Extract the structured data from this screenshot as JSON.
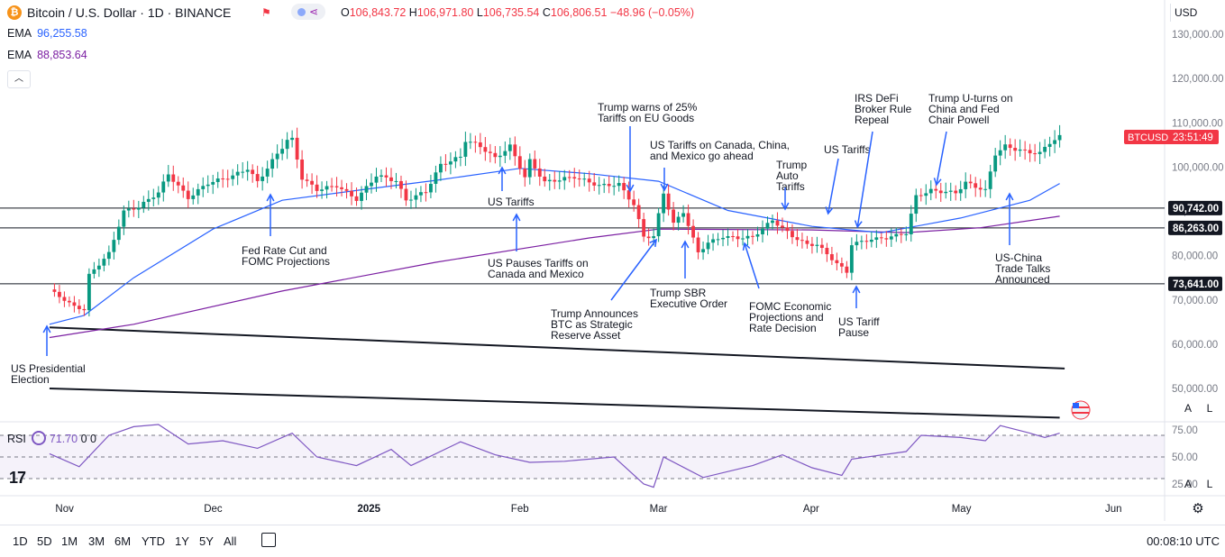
{
  "header": {
    "symbol": "Bitcoin / U.S. Dollar · 1D · BINANCE",
    "open_label": "O",
    "open": "106,843.72",
    "high_label": "H",
    "high": "106,971.80",
    "low_label": "L",
    "low": "106,735.54",
    "close_label": "C",
    "close": "106,806.51",
    "change": "−48.96 (−0.05%)",
    "logo_glyph": "₿",
    "currency": "USD"
  },
  "ema": [
    {
      "label": "EMA",
      "value": "96,255.58",
      "color": "#2962ff"
    },
    {
      "label": "EMA",
      "value": "88,853.64",
      "color": "#7b1fa2"
    }
  ],
  "rsi": {
    "label": "RSI",
    "value": "71.70",
    "extra1": "0",
    "extra2": "0",
    "color": "#7e57c2"
  },
  "price_axis": {
    "ticks": [
      "130,000.00",
      "120,000.00",
      "110,000.00",
      "100,000.00",
      "90,000.00",
      "80,000.00",
      "70,000.00",
      "60,000.00",
      "50,000.00"
    ],
    "tick_values": [
      130000,
      120000,
      110000,
      100000,
      90000,
      80000,
      70000,
      60000,
      50000
    ],
    "last_label": "BTCUSD",
    "last_timer": "23:51:49",
    "last_color": "#f23645"
  },
  "rsi_axis": {
    "ticks": [
      "75.00",
      "50.00",
      "25.00"
    ],
    "tick_values": [
      75,
      50,
      25
    ]
  },
  "time_axis": {
    "labels": [
      "Nov",
      "Dec",
      "2025",
      "Feb",
      "Mar",
      "Apr",
      "May",
      "Jun"
    ]
  },
  "axis_buttons": {
    "auto": "A",
    "log": "L"
  },
  "bottom_bar": {
    "ranges": [
      "1D",
      "5D",
      "1M",
      "3M",
      "6M",
      "YTD",
      "1Y",
      "5Y",
      "All"
    ],
    "clock": "00:08:10 UTC"
  },
  "chart_data": {
    "type": "candlestick",
    "title": "Bitcoin / U.S. Dollar · 1D · BINANCE",
    "y_unit": "USD",
    "ylim": [
      43000,
      138000
    ],
    "x_range": [
      "2024-10-29",
      "2025-06-05"
    ],
    "colors": {
      "up": "#089981",
      "down": "#f23645",
      "ema_fast": "#2962ff",
      "ema_slow": "#7b1fa2",
      "rsi": "#7e57c2"
    },
    "close_path": [
      [
        "2024-10-29",
        72300
      ],
      [
        "2024-11-03",
        68500
      ],
      [
        "2024-11-05",
        67800
      ],
      [
        "2024-11-06",
        75600
      ],
      [
        "2024-11-10",
        80500
      ],
      [
        "2024-11-13",
        90000
      ],
      [
        "2024-11-16",
        91000
      ],
      [
        "2024-11-20",
        94300
      ],
      [
        "2024-11-22",
        98400
      ],
      [
        "2024-11-26",
        93000
      ],
      [
        "2024-11-30",
        96400
      ],
      [
        "2024-12-05",
        98000
      ],
      [
        "2024-12-08",
        99700
      ],
      [
        "2024-12-10",
        96600
      ],
      [
        "2024-12-13",
        101400
      ],
      [
        "2024-12-16",
        106100
      ],
      [
        "2024-12-17",
        106200
      ],
      [
        "2024-12-19",
        97500
      ],
      [
        "2024-12-22",
        94900
      ],
      [
        "2024-12-26",
        95800
      ],
      [
        "2024-12-30",
        92700
      ],
      [
        "2025-01-03",
        98100
      ],
      [
        "2025-01-07",
        96900
      ],
      [
        "2025-01-09",
        92500
      ],
      [
        "2025-01-13",
        94500
      ],
      [
        "2025-01-16",
        100500
      ],
      [
        "2025-01-20",
        102300
      ],
      [
        "2025-01-21",
        106100
      ],
      [
        "2025-01-24",
        104700
      ],
      [
        "2025-01-27",
        102000
      ],
      [
        "2025-01-30",
        104700
      ],
      [
        "2025-02-02",
        97700
      ],
      [
        "2025-02-03",
        101400
      ],
      [
        "2025-02-06",
        96600
      ],
      [
        "2025-02-12",
        97800
      ],
      [
        "2025-02-17",
        95800
      ],
      [
        "2025-02-21",
        96100
      ],
      [
        "2025-02-24",
        91500
      ],
      [
        "2025-02-26",
        84300
      ],
      [
        "2025-02-28",
        84300
      ],
      [
        "2025-03-02",
        94200
      ],
      [
        "2025-03-04",
        87200
      ],
      [
        "2025-03-06",
        89900
      ],
      [
        "2025-03-09",
        80700
      ],
      [
        "2025-03-11",
        82900
      ],
      [
        "2025-03-14",
        84300
      ],
      [
        "2025-03-17",
        84000
      ],
      [
        "2025-03-20",
        84200
      ],
      [
        "2025-03-24",
        88000
      ],
      [
        "2025-03-28",
        84400
      ],
      [
        "2025-03-31",
        82500
      ],
      [
        "2025-04-02",
        82500
      ],
      [
        "2025-04-06",
        78200
      ],
      [
        "2025-04-08",
        76300
      ],
      [
        "2025-04-09",
        82600
      ],
      [
        "2025-04-13",
        83700
      ],
      [
        "2025-04-16",
        84000
      ],
      [
        "2025-04-20",
        85100
      ],
      [
        "2025-04-22",
        93400
      ],
      [
        "2025-04-25",
        94700
      ],
      [
        "2025-04-30",
        94200
      ],
      [
        "2025-05-02",
        96500
      ],
      [
        "2025-05-06",
        94700
      ],
      [
        "2025-05-08",
        103000
      ],
      [
        "2025-05-10",
        104700
      ],
      [
        "2025-05-14",
        103500
      ],
      [
        "2025-05-17",
        103100
      ],
      [
        "2025-05-19",
        105600
      ],
      [
        "2025-05-21",
        106800
      ]
    ],
    "ema_fast_path": [
      [
        "2024-10-29",
        64500
      ],
      [
        "2024-11-05",
        66500
      ],
      [
        "2024-11-15",
        75000
      ],
      [
        "2024-12-01",
        86000
      ],
      [
        "2024-12-15",
        92500
      ],
      [
        "2025-01-01",
        95000
      ],
      [
        "2025-01-15",
        97000
      ],
      [
        "2025-02-01",
        99700
      ],
      [
        "2025-02-15",
        98500
      ],
      [
        "2025-03-01",
        96800
      ],
      [
        "2025-03-15",
        90200
      ],
      [
        "2025-04-01",
        86600
      ],
      [
        "2025-04-15",
        85200
      ],
      [
        "2025-05-01",
        88500
      ],
      [
        "2025-05-15",
        92500
      ],
      [
        "2025-05-21",
        96300
      ]
    ],
    "ema_slow_path": [
      [
        "2024-10-29",
        61500
      ],
      [
        "2024-11-15",
        64500
      ],
      [
        "2024-12-15",
        72000
      ],
      [
        "2025-01-15",
        78500
      ],
      [
        "2025-02-15",
        84000
      ],
      [
        "2025-03-01",
        86000
      ],
      [
        "2025-04-01",
        85800
      ],
      [
        "2025-04-20",
        85200
      ],
      [
        "2025-05-05",
        86300
      ],
      [
        "2025-05-21",
        88900
      ]
    ],
    "horizontal_levels": [
      {
        "label": "90,742.00",
        "value": 90742
      },
      {
        "label": "86,263.00",
        "value": 86263
      },
      {
        "label": "73,641.00",
        "value": 73641
      }
    ],
    "trend_lines": [
      {
        "from": [
          "2024-10-29",
          63800
        ],
        "to": [
          "2025-05-22",
          54500
        ]
      },
      {
        "from": [
          "2024-10-29",
          50000
        ],
        "to": [
          "2025-05-21",
          43400
        ]
      }
    ],
    "rsi_path": [
      [
        "2024-10-29",
        53
      ],
      [
        "2024-11-04",
        41
      ],
      [
        "2024-11-10",
        70
      ],
      [
        "2024-11-15",
        78
      ],
      [
        "2024-11-20",
        80
      ],
      [
        "2024-11-26",
        62
      ],
      [
        "2024-12-03",
        65
      ],
      [
        "2024-12-10",
        58
      ],
      [
        "2024-12-17",
        72
      ],
      [
        "2024-12-22",
        50
      ],
      [
        "2024-12-30",
        42
      ],
      [
        "2025-01-06",
        57
      ],
      [
        "2025-01-10",
        42
      ],
      [
        "2025-01-20",
        64
      ],
      [
        "2025-01-27",
        52
      ],
      [
        "2025-02-03",
        45
      ],
      [
        "2025-02-10",
        46
      ],
      [
        "2025-02-20",
        50
      ],
      [
        "2025-02-26",
        25
      ],
      [
        "2025-02-28",
        22
      ],
      [
        "2025-03-02",
        50
      ],
      [
        "2025-03-10",
        31
      ],
      [
        "2025-03-20",
        42
      ],
      [
        "2025-03-26",
        52
      ],
      [
        "2025-04-01",
        40
      ],
      [
        "2025-04-07",
        33
      ],
      [
        "2025-04-09",
        48
      ],
      [
        "2025-04-20",
        55
      ],
      [
        "2025-04-23",
        70
      ],
      [
        "2025-05-01",
        68
      ],
      [
        "2025-05-06",
        65
      ],
      [
        "2025-05-09",
        79
      ],
      [
        "2025-05-15",
        72
      ],
      [
        "2025-05-18",
        68
      ],
      [
        "2025-05-21",
        72
      ]
    ],
    "annotations": [
      {
        "lines": [
          "US Presidential",
          "Election"
        ],
        "date": "2024-11-05"
      },
      {
        "lines": [
          "Fed Rate Cut and",
          "FOMC Projections"
        ],
        "date": "2024-12-18"
      },
      {
        "lines": [
          "US Tariffs"
        ],
        "date": "2025-02-01"
      },
      {
        "lines": [
          "US Pauses Tariffs on",
          "Canada and Mexico"
        ],
        "date": "2025-02-03"
      },
      {
        "lines": [
          "Trump warns of 25%",
          "Tariffs on EU Goods"
        ],
        "date": "2025-02-26"
      },
      {
        "lines": [
          "US Tariffs on Canada, China,",
          "and Mexico go ahead"
        ],
        "date": "2025-03-04"
      },
      {
        "lines": [
          "Trump Announces",
          "BTC as Strategic",
          "Reserve Asset"
        ],
        "date": "2025-03-02"
      },
      {
        "lines": [
          "Trump SBR",
          "Executive Order"
        ],
        "date": "2025-03-07"
      },
      {
        "lines": [
          "Trump",
          "Auto",
          "Tariffs"
        ],
        "date": "2025-03-26"
      },
      {
        "lines": [
          "FOMC Economic",
          "Projections and",
          "Rate Decision"
        ],
        "date": "2025-03-19"
      },
      {
        "lines": [
          "US Tariffs"
        ],
        "date": "2025-04-02"
      },
      {
        "lines": [
          "IRS DeFi",
          "Broker Rule",
          "Repeal"
        ],
        "date": "2025-04-10"
      },
      {
        "lines": [
          "US Tariff",
          "Pause"
        ],
        "date": "2025-04-09"
      },
      {
        "lines": [
          "Trump U-turns on",
          "China and Fed",
          "Chair Powell"
        ],
        "date": "2025-04-22"
      },
      {
        "lines": [
          "US-China",
          "Trade Talks",
          "Announced"
        ],
        "date": "2025-05-07"
      }
    ]
  }
}
